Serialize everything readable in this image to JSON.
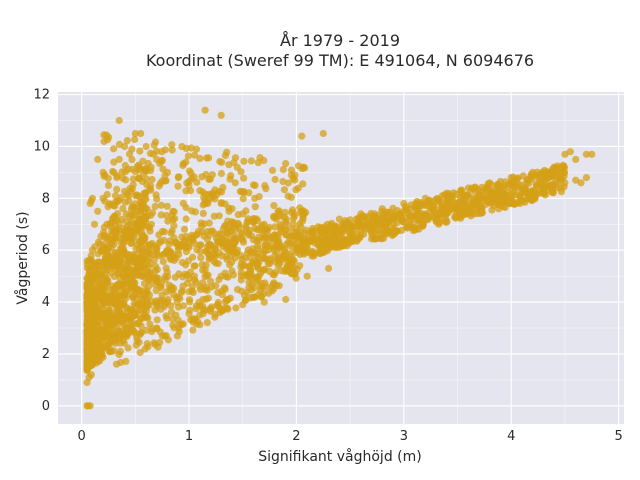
{
  "chart_data": {
    "type": "scatter",
    "title_line1": "År 1979 - 2019",
    "title_line2": "Koordinat (Sweref 99 TM): E 491064, N 6094676",
    "xlabel": "Signifikant våghöjd (m)",
    "ylabel": "Vågperiod (s)",
    "xlim": [
      -0.22,
      5.05
    ],
    "ylim": [
      -0.7,
      12.1
    ],
    "xticks": [
      0,
      1,
      2,
      3,
      4,
      5
    ],
    "yticks": [
      0,
      2,
      4,
      6,
      8,
      10,
      12
    ],
    "grid": true,
    "colors": {
      "background": "#e5e5ef",
      "marker": "#d4a017",
      "grid": "#ffffff"
    },
    "series": [
      {
        "x": [
          0.05,
          0.06,
          0.08,
          0.07,
          0.09,
          0.1,
          0.12,
          0.14,
          0.16,
          0.18,
          0.2,
          0.22,
          0.25,
          0.28,
          0.3,
          0.35,
          0.4,
          0.45,
          0.5,
          0.55,
          0.6,
          0.7,
          0.8,
          0.9,
          1.0,
          1.1,
          1.2,
          1.3,
          1.4,
          1.5,
          1.6,
          1.7,
          1.8,
          1.9,
          2.0,
          2.1,
          2.2,
          2.3,
          2.4,
          2.5,
          2.6,
          2.7,
          2.8,
          2.9,
          3.0,
          3.1,
          3.2,
          3.3,
          3.4,
          3.5,
          3.6,
          3.7,
          3.8,
          3.9,
          4.0,
          4.1,
          4.2,
          4.3,
          4.4,
          4.5,
          4.6,
          4.7,
          4.75,
          0.06,
          0.07,
          0.08,
          0.1,
          0.12,
          0.15,
          0.2,
          0.25,
          0.3,
          0.35,
          0.4,
          0.5,
          0.6,
          0.7,
          0.8,
          0.9,
          1.0,
          1.1,
          1.2,
          1.3,
          1.4,
          1.5,
          1.6,
          1.7,
          1.8,
          1.9,
          2.0,
          2.2,
          2.4,
          2.6,
          2.8,
          3.0,
          3.2,
          3.4,
          3.6,
          3.8,
          4.0,
          4.2,
          4.4,
          4.6,
          0.3,
          0.4,
          0.5,
          0.6,
          0.7,
          0.8,
          0.9,
          1.0,
          1.1,
          1.2,
          1.3,
          1.4,
          1.5,
          1.6,
          1.7,
          1.8,
          1.9,
          2.0,
          0.3,
          0.5,
          0.7,
          0.9,
          1.1,
          1.3,
          1.5,
          1.7,
          1.9,
          2.1,
          2.3,
          0.08,
          0.09,
          0.1,
          0.05,
          0.07,
          0.35,
          0.55,
          1.15,
          1.3,
          2.05,
          2.25,
          4.5,
          4.55,
          4.7,
          4.65,
          4.35,
          0.25,
          0.45,
          0.65,
          0.85,
          1.05,
          1.25,
          1.45,
          1.65,
          1.85,
          0.15,
          0.2,
          0.12,
          0.18
        ],
        "y": [
          0.0,
          0.0,
          0.0,
          1.5,
          1.2,
          1.8,
          2.0,
          2.3,
          2.4,
          2.6,
          2.7,
          2.8,
          3.0,
          3.1,
          3.2,
          3.3,
          3.4,
          3.5,
          3.6,
          3.7,
          3.8,
          3.9,
          4.0,
          4.2,
          4.4,
          4.6,
          4.8,
          5.0,
          5.2,
          5.4,
          5.5,
          5.7,
          5.8,
          5.9,
          6.0,
          6.1,
          6.2,
          6.3,
          6.4,
          6.5,
          6.6,
          6.8,
          6.9,
          7.0,
          7.1,
          7.2,
          7.3,
          7.4,
          7.5,
          7.6,
          7.7,
          7.8,
          7.9,
          8.0,
          8.1,
          8.2,
          8.3,
          8.4,
          8.5,
          8.6,
          8.7,
          8.8,
          9.7,
          3.0,
          4.0,
          5.0,
          6.0,
          7.0,
          7.5,
          8.0,
          8.5,
          9.0,
          9.5,
          10.0,
          10.5,
          10.0,
          9.5,
          9.0,
          8.8,
          8.5,
          8.3,
          8.0,
          7.8,
          7.6,
          7.4,
          7.2,
          7.0,
          6.9,
          6.8,
          6.7,
          6.9,
          7.2,
          7.4,
          7.6,
          7.8,
          8.0,
          8.2,
          8.4,
          8.6,
          8.8,
          9.0,
          9.2,
          9.5,
          4.5,
          5.0,
          5.5,
          5.8,
          6.0,
          6.0,
          6.0,
          6.1,
          6.2,
          6.2,
          6.3,
          6.3,
          6.4,
          6.4,
          6.5,
          6.5,
          6.6,
          6.6,
          2.5,
          2.8,
          3.0,
          3.3,
          3.5,
          3.7,
          3.9,
          4.0,
          4.1,
          5.0,
          5.3,
          7.8,
          7.9,
          8.0,
          0.9,
          1.1,
          11.0,
          10.5,
          11.4,
          11.2,
          10.4,
          10.5,
          9.7,
          9.8,
          9.7,
          8.6,
          8.8,
          5.5,
          6.5,
          7.0,
          7.5,
          5.0,
          5.5,
          6.0,
          6.5,
          7.0,
          9.5,
          9.0,
          5.5,
          6.0
        ]
      }
    ]
  }
}
